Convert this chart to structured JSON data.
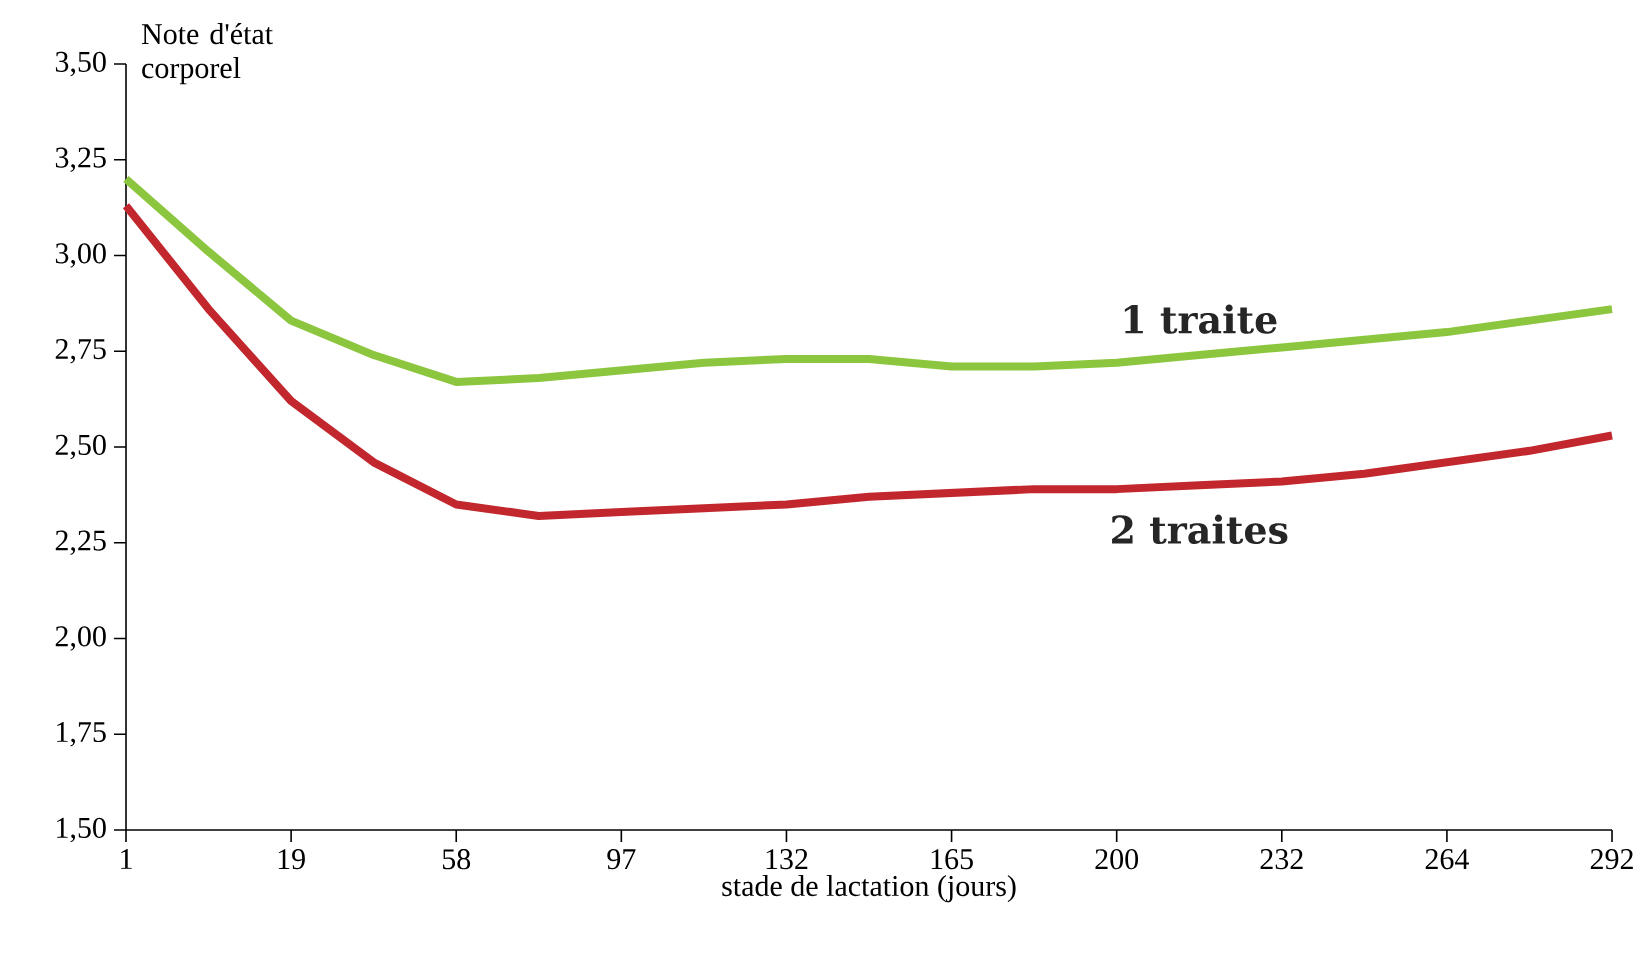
{
  "chart_data": {
    "type": "line",
    "xlabel": "stade de lactation (jours)",
    "ylabel": "Note d'état corporel",
    "categories": [
      "1",
      null,
      "19",
      null,
      "58",
      null,
      "97",
      null,
      "132",
      null,
      "165",
      null,
      "200",
      null,
      "232",
      null,
      "264",
      null,
      "292"
    ],
    "series": [
      {
        "name": "1 traite",
        "color": "#8cc63f",
        "values": [
          3.2,
          3.01,
          2.83,
          2.74,
          2.67,
          2.68,
          2.7,
          2.72,
          2.73,
          2.73,
          2.71,
          2.71,
          2.72,
          2.74,
          2.76,
          2.78,
          2.8,
          2.83,
          2.86
        ]
      },
      {
        "name": "2 traites",
        "color": "#c1272d",
        "values": [
          3.13,
          2.86,
          2.62,
          2.46,
          2.35,
          2.32,
          2.33,
          2.34,
          2.35,
          2.37,
          2.38,
          2.39,
          2.39,
          2.4,
          2.41,
          2.43,
          2.46,
          2.49,
          2.53
        ]
      }
    ],
    "ylim": [
      1.5,
      3.5
    ],
    "yticks": [
      {
        "value": 1.5,
        "label": "1,50"
      },
      {
        "value": 1.75,
        "label": "1,75"
      },
      {
        "value": 2.0,
        "label": "2,00"
      },
      {
        "value": 2.25,
        "label": "2,25"
      },
      {
        "value": 2.5,
        "label": "2,50"
      },
      {
        "value": 2.75,
        "label": "2,75"
      },
      {
        "value": 3.0,
        "label": "3,00"
      },
      {
        "value": 3.25,
        "label": "3,25"
      },
      {
        "value": 3.5,
        "label": "3,50"
      }
    ],
    "grid": false,
    "marker": "none",
    "line_style": "solid"
  }
}
